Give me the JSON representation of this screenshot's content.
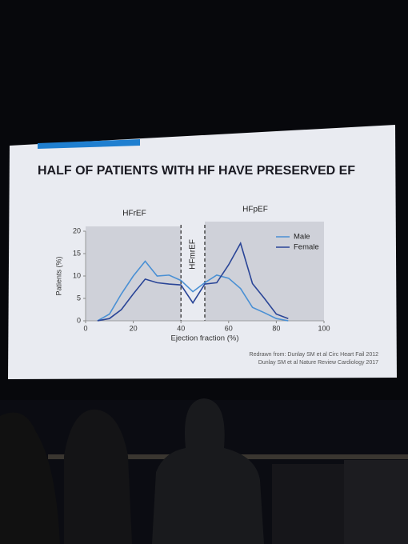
{
  "chart_data": {
    "type": "line",
    "title": "HALF OF PATIENTS WITH HF HAVE PRESERVED EF",
    "x_label": "Ejection fraction (%)",
    "y_label": "Patients (%)",
    "annotations": [
      "HFrEF",
      "HFmrEF",
      "HFpEF"
    ],
    "dividers": [
      40,
      50
    ],
    "sources": [
      "Redrawn from:  Dunlay SM et al Circ Heart Fail 2012",
      "Dunlay SM et al Nature Review Cardiology 2017"
    ],
    "x": [
      5,
      10,
      15,
      20,
      25,
      30,
      35,
      40,
      45,
      50,
      55,
      60,
      65,
      70,
      75,
      80,
      85
    ],
    "series": [
      {
        "name": "Male",
        "color": "#4a90d4",
        "values": [
          0,
          1.5,
          6,
          10,
          13.3,
          10,
          10.2,
          9,
          6.5,
          8.5,
          10.2,
          9.5,
          7.2,
          3,
          1.8,
          0.5,
          0
        ]
      },
      {
        "name": "Female",
        "color": "#2a4597",
        "values": [
          0,
          0.5,
          2.5,
          6,
          9.3,
          8.5,
          8.2,
          8,
          4,
          8.2,
          8.5,
          12.5,
          17.3,
          8.3,
          5,
          1.5,
          0.5
        ]
      }
    ],
    "xlim": [
      0,
      100
    ],
    "ylim": [
      0,
      20
    ],
    "xticks": [
      0,
      20,
      40,
      60,
      80,
      100
    ],
    "yticks": [
      0,
      5,
      10,
      15,
      20
    ]
  }
}
